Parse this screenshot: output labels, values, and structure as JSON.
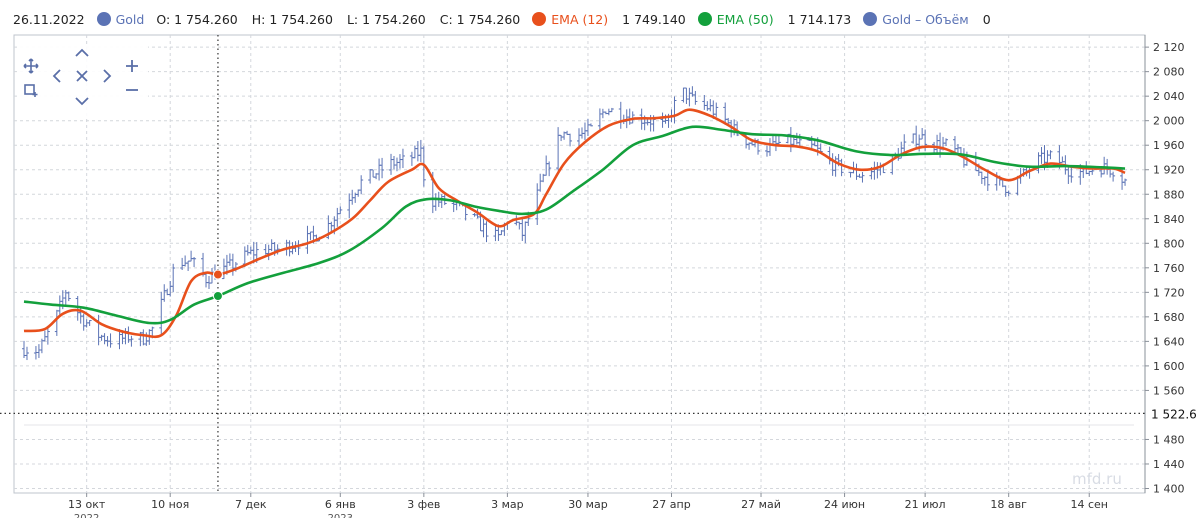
{
  "legend": {
    "date": "26.11.2022",
    "symbol": "Gold",
    "symbol_color": "#5b73b5",
    "open": "O: 1 754.260",
    "high": "H: 1 754.260",
    "low": "L: 1 754.260",
    "close": "C: 1 754.260",
    "ema12_name": "EMA (12)",
    "ema12_value": "1 749.140",
    "ema12_color": "#e8501c",
    "ema50_name": "EMA (50)",
    "ema50_value": "1 714.173",
    "ema50_color": "#13a03c",
    "volume_name": "Gold – Объём",
    "volume_value": "0",
    "volume_color": "#5b73b5"
  },
  "toolbar": {
    "items": [
      "move-icon",
      "zoom-in-icon",
      "zoom-out-icon",
      "select-area-icon",
      "pan-up-icon",
      "pan-down-icon",
      "pan-left-icon",
      "pan-right-icon",
      "reset-icon"
    ]
  },
  "watermark": "mfd.ru",
  "chart_data": {
    "type": "line",
    "title": "",
    "xlabel": "",
    "ylabel": "",
    "y_axis_side": "right",
    "ylim": [
      1400,
      2130
    ],
    "y_ticks": [
      "2 120",
      "2 080",
      "2 040",
      "2 000",
      "1 960",
      "1 920",
      "1 880",
      "1 840",
      "1 800",
      "1 760",
      "1 720",
      "1 680",
      "1 640",
      "1 600",
      "1 560",
      "1 480",
      "1 440",
      "1 400"
    ],
    "y_tick_values": [
      2120,
      2080,
      2040,
      2000,
      1960,
      1920,
      1880,
      1840,
      1800,
      1760,
      1720,
      1680,
      1640,
      1600,
      1560,
      1480,
      1440,
      1400
    ],
    "price_marker": {
      "label": "1 522.6",
      "value": 1522.6
    },
    "x_range": [
      "2022-09-22",
      "2023-09-29"
    ],
    "x_ticks": [
      {
        "label": "13 окт",
        "sublabel": "2022",
        "date": "2022-10-13"
      },
      {
        "label": "10 ноя",
        "sublabel": "",
        "date": "2022-11-10"
      },
      {
        "label": "7 дек",
        "sublabel": "",
        "date": "2022-12-07"
      },
      {
        "label": "6 янв",
        "sublabel": "2023",
        "date": "2023-01-06"
      },
      {
        "label": "3 фев",
        "sublabel": "",
        "date": "2023-02-03"
      },
      {
        "label": "3 мар",
        "sublabel": "",
        "date": "2023-03-03"
      },
      {
        "label": "30 мар",
        "sublabel": "",
        "date": "2023-03-30"
      },
      {
        "label": "27 апр",
        "sublabel": "",
        "date": "2023-04-27"
      },
      {
        "label": "27 май",
        "sublabel": "",
        "date": "2023-05-27"
      },
      {
        "label": "24 июн",
        "sublabel": "",
        "date": "2023-06-24"
      },
      {
        "label": "21 июл",
        "sublabel": "",
        "date": "2023-07-21"
      },
      {
        "label": "18 авг",
        "sublabel": "",
        "date": "2023-08-18"
      },
      {
        "label": "14 сен",
        "sublabel": "",
        "date": "2023-09-14"
      }
    ],
    "grid": true,
    "crosshair_date": "2022-11-26",
    "series": [
      {
        "name": "Gold",
        "kind": "ohlc",
        "color": "#5b73b5",
        "points": [
          [
            "2022-09-22",
            1628
          ],
          [
            "2022-09-27",
            1625
          ],
          [
            "2022-10-02",
            1670
          ],
          [
            "2022-10-06",
            1722
          ],
          [
            "2022-10-11",
            1680
          ],
          [
            "2022-10-17",
            1650
          ],
          [
            "2022-10-22",
            1640
          ],
          [
            "2022-10-27",
            1648
          ],
          [
            "2022-11-01",
            1645
          ],
          [
            "2022-11-04",
            1660
          ],
          [
            "2022-11-07",
            1700
          ],
          [
            "2022-11-12",
            1768
          ],
          [
            "2022-11-17",
            1772
          ],
          [
            "2022-11-22",
            1742
          ],
          [
            "2022-11-26",
            1754
          ],
          [
            "2022-12-01",
            1765
          ],
          [
            "2022-12-06",
            1782
          ],
          [
            "2022-12-11",
            1790
          ],
          [
            "2022-12-16",
            1790
          ],
          [
            "2022-12-22",
            1800
          ],
          [
            "2022-12-28",
            1810
          ],
          [
            "2023-01-02",
            1830
          ],
          [
            "2023-01-08",
            1870
          ],
          [
            "2023-01-13",
            1900
          ],
          [
            "2023-01-18",
            1915
          ],
          [
            "2023-01-23",
            1930
          ],
          [
            "2023-01-28",
            1935
          ],
          [
            "2023-02-02",
            1950
          ],
          [
            "2023-02-04",
            1870
          ],
          [
            "2023-02-09",
            1868
          ],
          [
            "2023-02-14",
            1860
          ],
          [
            "2023-02-19",
            1842
          ],
          [
            "2023-02-24",
            1820
          ],
          [
            "2023-02-28",
            1808
          ],
          [
            "2023-03-04",
            1848
          ],
          [
            "2023-03-08",
            1815
          ],
          [
            "2023-03-12",
            1865
          ],
          [
            "2023-03-16",
            1920
          ],
          [
            "2023-03-21",
            1980
          ],
          [
            "2023-03-26",
            1975
          ],
          [
            "2023-03-31",
            1985
          ],
          [
            "2023-04-05",
            2020
          ],
          [
            "2023-04-10",
            2010
          ],
          [
            "2023-04-15",
            2005
          ],
          [
            "2023-04-20",
            2000
          ],
          [
            "2023-04-25",
            1990
          ],
          [
            "2023-04-30",
            2050
          ],
          [
            "2023-05-05",
            2030
          ],
          [
            "2023-05-10",
            2020
          ],
          [
            "2023-05-15",
            2000
          ],
          [
            "2023-05-20",
            1975
          ],
          [
            "2023-05-25",
            1960
          ],
          [
            "2023-05-30",
            1955
          ],
          [
            "2023-06-04",
            1968
          ],
          [
            "2023-06-09",
            1962
          ],
          [
            "2023-06-14",
            1955
          ],
          [
            "2023-06-19",
            1932
          ],
          [
            "2023-06-24",
            1920
          ],
          [
            "2023-06-29",
            1912
          ],
          [
            "2023-07-04",
            1918
          ],
          [
            "2023-07-09",
            1930
          ],
          [
            "2023-07-14",
            1958
          ],
          [
            "2023-07-19",
            1975
          ],
          [
            "2023-07-24",
            1962
          ],
          [
            "2023-07-29",
            1960
          ],
          [
            "2023-08-03",
            1935
          ],
          [
            "2023-08-08",
            1915
          ],
          [
            "2023-08-13",
            1900
          ],
          [
            "2023-08-18",
            1890
          ],
          [
            "2023-08-23",
            1912
          ],
          [
            "2023-08-28",
            1935
          ],
          [
            "2023-09-02",
            1942
          ],
          [
            "2023-09-07",
            1920
          ],
          [
            "2023-09-12",
            1915
          ],
          [
            "2023-09-17",
            1925
          ],
          [
            "2023-09-22",
            1920
          ],
          [
            "2023-09-26",
            1902
          ]
        ]
      },
      {
        "name": "EMA (12)",
        "kind": "line",
        "color": "#e8501c",
        "points": [
          [
            "2022-09-22",
            1657
          ],
          [
            "2022-09-29",
            1660
          ],
          [
            "2022-10-05",
            1685
          ],
          [
            "2022-10-11",
            1690
          ],
          [
            "2022-10-18",
            1668
          ],
          [
            "2022-10-25",
            1656
          ],
          [
            "2022-11-01",
            1650
          ],
          [
            "2022-11-07",
            1650
          ],
          [
            "2022-11-12",
            1682
          ],
          [
            "2022-11-17",
            1738
          ],
          [
            "2022-11-22",
            1752
          ],
          [
            "2022-11-26",
            1749
          ],
          [
            "2022-12-02",
            1758
          ],
          [
            "2022-12-10",
            1775
          ],
          [
            "2022-12-18",
            1790
          ],
          [
            "2022-12-26",
            1800
          ],
          [
            "2023-01-02",
            1815
          ],
          [
            "2023-01-10",
            1840
          ],
          [
            "2023-01-16",
            1870
          ],
          [
            "2023-01-22",
            1900
          ],
          [
            "2023-01-30",
            1920
          ],
          [
            "2023-02-03",
            1928
          ],
          [
            "2023-02-08",
            1890
          ],
          [
            "2023-02-14",
            1870
          ],
          [
            "2023-02-21",
            1850
          ],
          [
            "2023-02-28",
            1828
          ],
          [
            "2023-03-05",
            1838
          ],
          [
            "2023-03-12",
            1848
          ],
          [
            "2023-03-16",
            1880
          ],
          [
            "2023-03-22",
            1930
          ],
          [
            "2023-03-29",
            1965
          ],
          [
            "2023-04-06",
            1992
          ],
          [
            "2023-04-14",
            2003
          ],
          [
            "2023-04-21",
            2004
          ],
          [
            "2023-04-28",
            2008
          ],
          [
            "2023-05-03",
            2018
          ],
          [
            "2023-05-10",
            2008
          ],
          [
            "2023-05-17",
            1990
          ],
          [
            "2023-05-24",
            1968
          ],
          [
            "2023-06-01",
            1960
          ],
          [
            "2023-06-08",
            1958
          ],
          [
            "2023-06-15",
            1950
          ],
          [
            "2023-06-22",
            1930
          ],
          [
            "2023-06-29",
            1920
          ],
          [
            "2023-07-06",
            1925
          ],
          [
            "2023-07-13",
            1945
          ],
          [
            "2023-07-20",
            1957
          ],
          [
            "2023-07-27",
            1955
          ],
          [
            "2023-08-03",
            1940
          ],
          [
            "2023-08-10",
            1920
          ],
          [
            "2023-08-18",
            1903
          ],
          [
            "2023-08-25",
            1918
          ],
          [
            "2023-09-01",
            1930
          ],
          [
            "2023-09-08",
            1925
          ],
          [
            "2023-09-15",
            1922
          ],
          [
            "2023-09-22",
            1922
          ],
          [
            "2023-09-26",
            1915
          ]
        ]
      },
      {
        "name": "EMA (50)",
        "kind": "line",
        "color": "#13a03c",
        "points": [
          [
            "2022-09-22",
            1705
          ],
          [
            "2022-10-01",
            1700
          ],
          [
            "2022-10-12",
            1695
          ],
          [
            "2022-10-23",
            1682
          ],
          [
            "2022-11-03",
            1670
          ],
          [
            "2022-11-10",
            1675
          ],
          [
            "2022-11-18",
            1700
          ],
          [
            "2022-11-26",
            1714
          ],
          [
            "2022-12-06",
            1735
          ],
          [
            "2022-12-18",
            1752
          ],
          [
            "2022-12-30",
            1768
          ],
          [
            "2023-01-09",
            1788
          ],
          [
            "2023-01-20",
            1825
          ],
          [
            "2023-01-28",
            1860
          ],
          [
            "2023-02-04",
            1872
          ],
          [
            "2023-02-12",
            1870
          ],
          [
            "2023-02-20",
            1860
          ],
          [
            "2023-02-28",
            1853
          ],
          [
            "2023-03-08",
            1848
          ],
          [
            "2023-03-16",
            1855
          ],
          [
            "2023-03-25",
            1885
          ],
          [
            "2023-04-04",
            1920
          ],
          [
            "2023-04-14",
            1960
          ],
          [
            "2023-04-24",
            1975
          ],
          [
            "2023-05-04",
            1990
          ],
          [
            "2023-05-14",
            1985
          ],
          [
            "2023-05-24",
            1978
          ],
          [
            "2023-06-04",
            1976
          ],
          [
            "2023-06-15",
            1968
          ],
          [
            "2023-06-28",
            1950
          ],
          [
            "2023-07-10",
            1944
          ],
          [
            "2023-07-21",
            1946
          ],
          [
            "2023-08-02",
            1945
          ],
          [
            "2023-08-14",
            1932
          ],
          [
            "2023-08-25",
            1925
          ],
          [
            "2023-09-06",
            1926
          ],
          [
            "2023-09-18",
            1924
          ],
          [
            "2023-09-26",
            1922
          ]
        ]
      }
    ],
    "markers": [
      {
        "series": "EMA (12)",
        "date": "2022-11-26",
        "value": 1749
      },
      {
        "series": "EMA (50)",
        "date": "2022-11-26",
        "value": 1714
      }
    ]
  }
}
